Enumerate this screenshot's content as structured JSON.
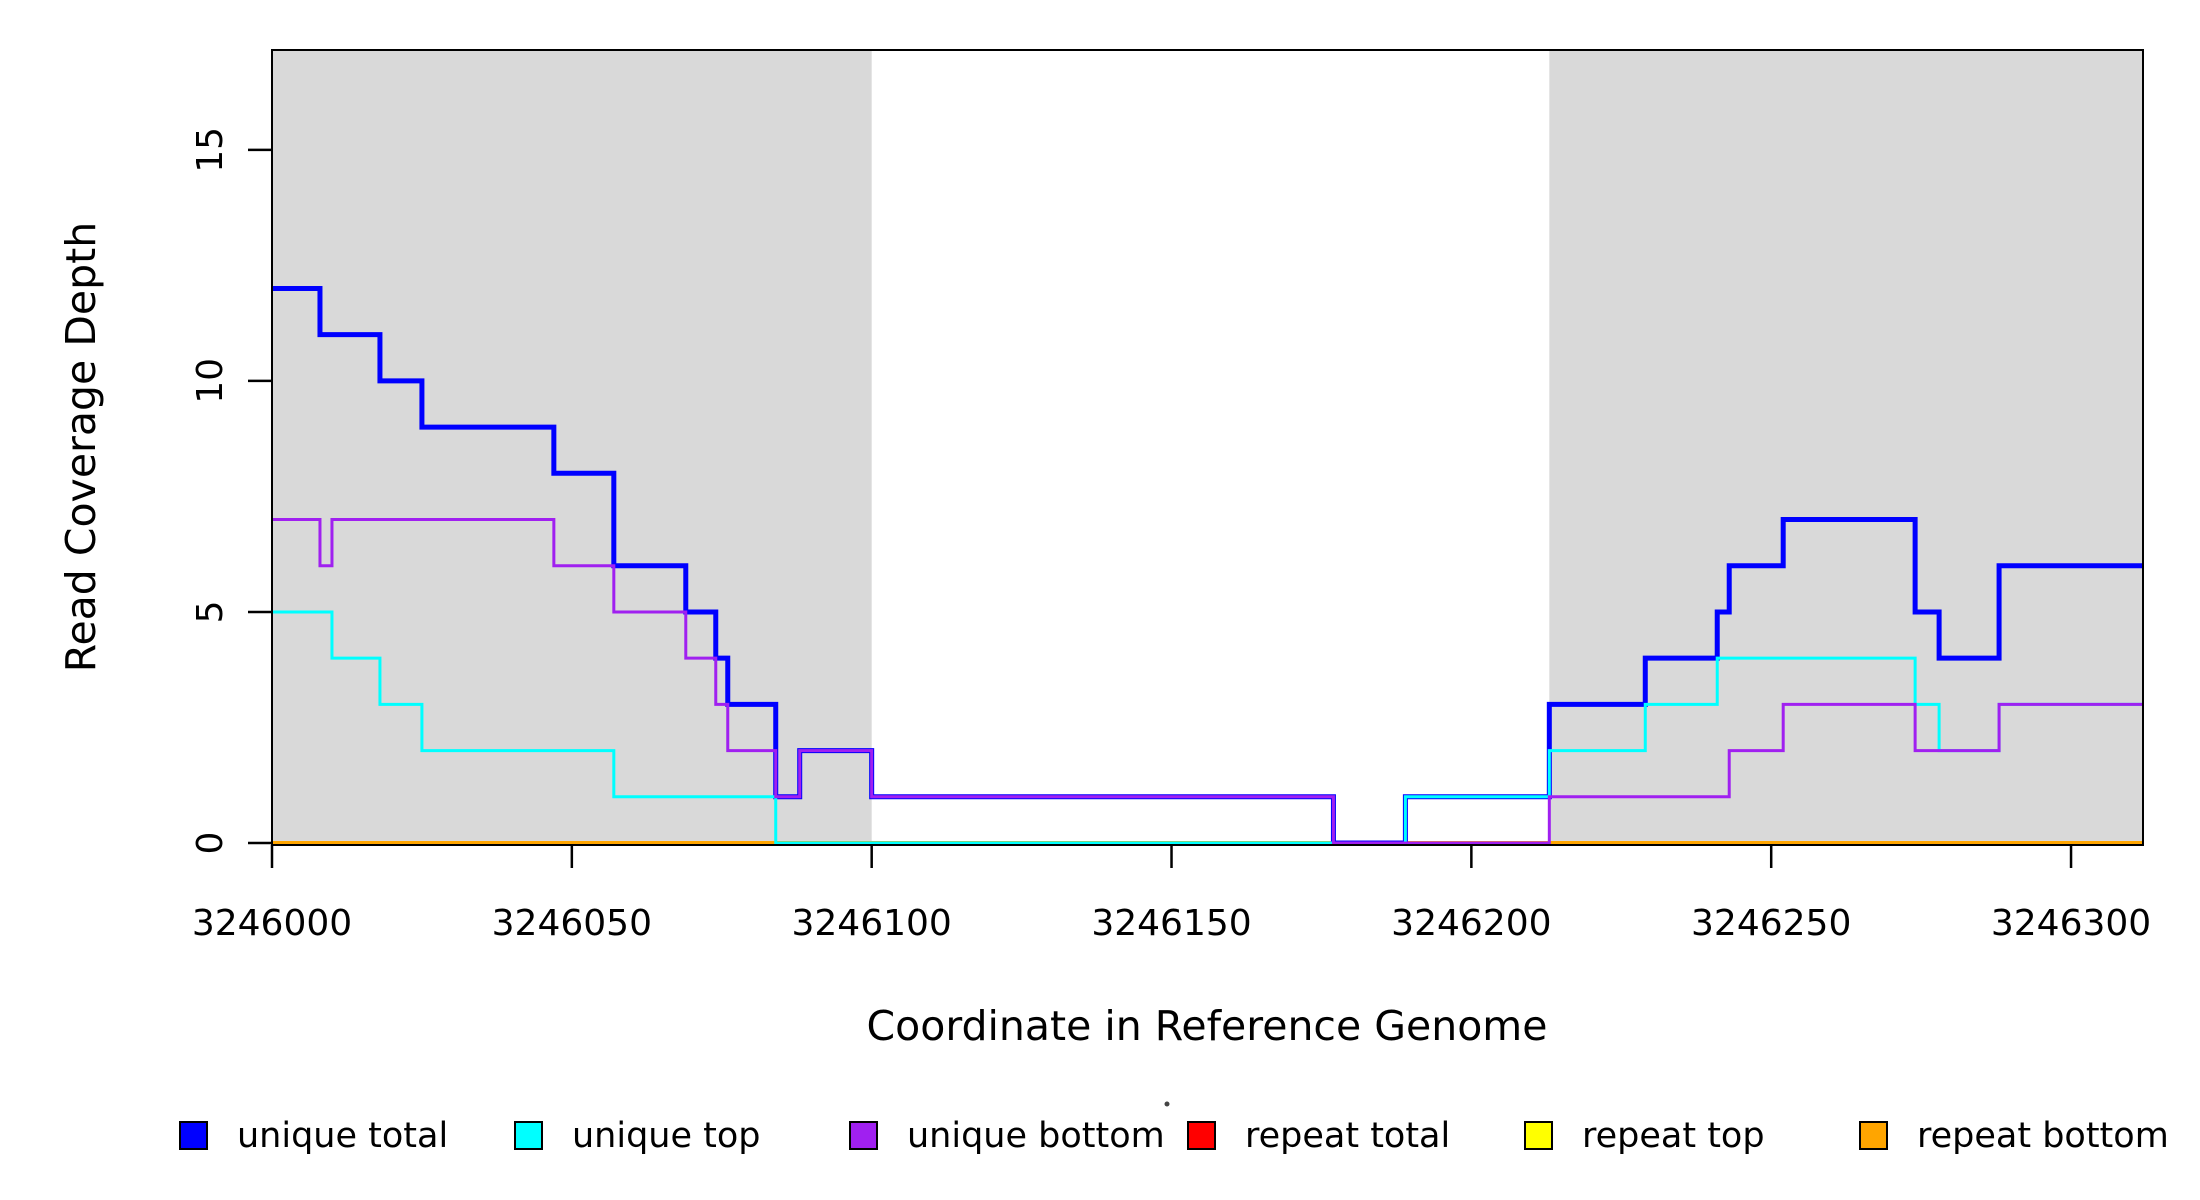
{
  "chart_data": {
    "type": "line",
    "subtype": "step-coverage-plot",
    "title": "",
    "xlabel": "Coordinate in Reference Genome",
    "ylabel": "Read Coverage Depth",
    "x_ticks": [
      3246000,
      3246050,
      3246100,
      3246150,
      3246200,
      3246250,
      3246300
    ],
    "y_ticks": [
      0,
      5,
      10,
      15
    ],
    "xlim": [
      3246000,
      3246312
    ],
    "ylim": [
      0,
      17.16
    ],
    "grid": false,
    "background_color": "#ffffff",
    "shaded_region_color": "#d9d9d9",
    "shaded_regions": [
      {
        "name": "left-gray-band",
        "x0": 3246000,
        "x1": 3246100
      },
      {
        "name": "right-gray-band",
        "x0": 3246213,
        "x1": 3246312
      }
    ],
    "series": [
      {
        "name": "unique total",
        "color": "#0000ff",
        "lwd": 5,
        "steps": [
          [
            3246000,
            12
          ],
          [
            3246008,
            11
          ],
          [
            3246018,
            10
          ],
          [
            3246025,
            9
          ],
          [
            3246047,
            8
          ],
          [
            3246057,
            6
          ],
          [
            3246069,
            5
          ],
          [
            3246074,
            4
          ],
          [
            3246076,
            3
          ],
          [
            3246084,
            1
          ],
          [
            3246088,
            2
          ],
          [
            3246100,
            1
          ],
          [
            3246177,
            0
          ],
          [
            3246189,
            1
          ],
          [
            3246213,
            3
          ],
          [
            3246229,
            4
          ],
          [
            3246241,
            5
          ],
          [
            3246243,
            6
          ],
          [
            3246252,
            7
          ],
          [
            3246274,
            5
          ],
          [
            3246278,
            4
          ],
          [
            3246288,
            6
          ]
        ]
      },
      {
        "name": "unique top",
        "color": "#00ffff",
        "lwd": 3,
        "steps": [
          [
            3246000,
            5
          ],
          [
            3246010,
            4
          ],
          [
            3246018,
            3
          ],
          [
            3246025,
            2
          ],
          [
            3246057,
            1
          ],
          [
            3246084,
            0
          ],
          [
            3246189,
            1
          ],
          [
            3246213,
            2
          ],
          [
            3246229,
            3
          ],
          [
            3246241,
            4
          ],
          [
            3246274,
            3
          ],
          [
            3246278,
            2
          ],
          [
            3246288,
            3
          ]
        ]
      },
      {
        "name": "unique bottom",
        "color": "#a020f0",
        "lwd": 3,
        "steps": [
          [
            3246000,
            7
          ],
          [
            3246008,
            6
          ],
          [
            3246010,
            7
          ],
          [
            3246047,
            6
          ],
          [
            3246057,
            5
          ],
          [
            3246069,
            4
          ],
          [
            3246074,
            3
          ],
          [
            3246076,
            2
          ],
          [
            3246084,
            1
          ],
          [
            3246088,
            2
          ],
          [
            3246100,
            1
          ],
          [
            3246177,
            0
          ],
          [
            3246213,
            1
          ],
          [
            3246243,
            2
          ],
          [
            3246252,
            3
          ],
          [
            3246274,
            2
          ],
          [
            3246288,
            3
          ]
        ]
      },
      {
        "name": "repeat total",
        "color": "#ff0000",
        "lwd": 3,
        "steps": [
          [
            3246000,
            0
          ]
        ]
      },
      {
        "name": "repeat top",
        "color": "#ffff00",
        "lwd": 3,
        "steps": [
          [
            3246000,
            0
          ]
        ]
      },
      {
        "name": "repeat bottom",
        "color": "#ffa500",
        "lwd": 4,
        "steps": [
          [
            3246000,
            0
          ]
        ]
      }
    ],
    "draw_order": [
      3,
      4,
      5,
      0,
      1,
      2
    ],
    "legend": {
      "position": "bottom",
      "entries": [
        {
          "label": "unique total",
          "color": "#0000ff"
        },
        {
          "label": "unique top",
          "color": "#00ffff"
        },
        {
          "label": "unique bottom",
          "color": "#a020f0"
        },
        {
          "label": "repeat total",
          "color": "#ff0000"
        },
        {
          "label": "repeat top",
          "color": "#ffff00"
        },
        {
          "label": "repeat bottom",
          "color": "#ffa500"
        }
      ]
    }
  }
}
